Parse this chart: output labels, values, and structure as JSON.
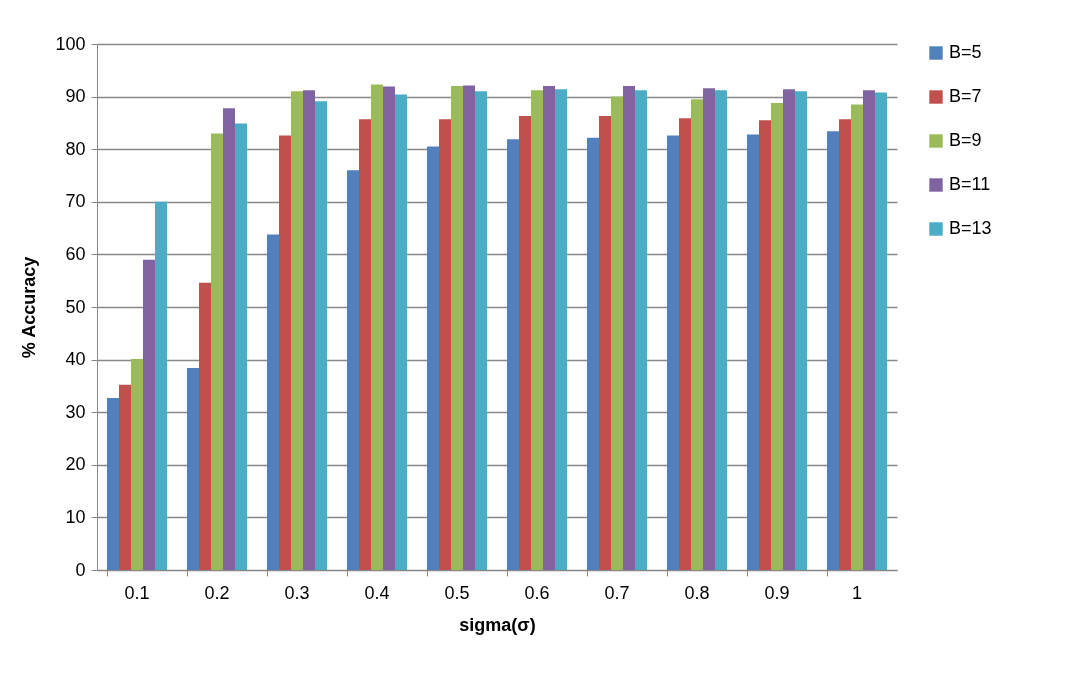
{
  "chart_data": {
    "type": "bar",
    "xlabel": "sigma(σ)",
    "ylabel": "% Accuracy",
    "categories": [
      "0.1",
      "0.2",
      "0.3",
      "0.4",
      "0.5",
      "0.6",
      "0.7",
      "0.8",
      "0.9",
      "1"
    ],
    "series": [
      {
        "name": "B=5",
        "color": "#4f81bd",
        "values": [
          32.7,
          38.4,
          63.8,
          76,
          80.5,
          81.9,
          82.2,
          82.6,
          82.8,
          83.4
        ]
      },
      {
        "name": "B=7",
        "color": "#c0504d",
        "values": [
          35.2,
          54.6,
          82.6,
          85.7,
          85.7,
          86.3,
          86.3,
          85.9,
          85.5,
          85.7
        ]
      },
      {
        "name": "B=9",
        "color": "#9bbb59",
        "values": [
          40.1,
          83,
          91,
          92.3,
          92,
          91.2,
          90,
          89.5,
          88.8,
          88.5
        ]
      },
      {
        "name": "B=11",
        "color": "#8064a2",
        "values": [
          59,
          87.8,
          91.2,
          91.9,
          92.1,
          92,
          92,
          91.6,
          91.4,
          91.2
        ]
      },
      {
        "name": "B=13",
        "color": "#4bacc6",
        "values": [
          70,
          84.9,
          89.1,
          90.4,
          91,
          91.4,
          91.2,
          91.2,
          91,
          90.8
        ]
      }
    ],
    "ylim": [
      0,
      100
    ],
    "yticks": [
      0,
      10,
      20,
      30,
      40,
      50,
      60,
      70,
      80,
      90,
      100
    ],
    "grid": "y",
    "legend": "right"
  }
}
